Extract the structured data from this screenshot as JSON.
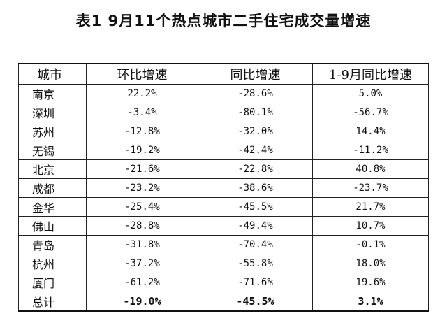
{
  "title": "表1  9月11个热点城市二手住宅成交量增速",
  "table": {
    "headers": [
      "城市",
      "环比增速",
      "同比增速",
      "1-9月同比增速"
    ],
    "rows": [
      {
        "city": "南京",
        "mom": "22.2%",
        "yoy": "-28.6%",
        "ytd": "5.0%"
      },
      {
        "city": "深圳",
        "mom": "-3.4%",
        "yoy": "-80.1%",
        "ytd": "-56.7%"
      },
      {
        "city": "苏州",
        "mom": "-12.8%",
        "yoy": "-32.0%",
        "ytd": "14.4%"
      },
      {
        "city": "无锡",
        "mom": "-19.2%",
        "yoy": "-42.4%",
        "ytd": "-11.2%"
      },
      {
        "city": "北京",
        "mom": "-21.6%",
        "yoy": "-22.8%",
        "ytd": "40.8%"
      },
      {
        "city": "成都",
        "mom": "-23.2%",
        "yoy": "-38.6%",
        "ytd": "-23.7%"
      },
      {
        "city": "金华",
        "mom": "-25.4%",
        "yoy": "-45.5%",
        "ytd": "21.7%"
      },
      {
        "city": "佛山",
        "mom": "-28.8%",
        "yoy": "-49.4%",
        "ytd": "10.7%"
      },
      {
        "city": "青岛",
        "mom": "-31.8%",
        "yoy": "-70.4%",
        "ytd": "-0.1%"
      },
      {
        "city": "杭州",
        "mom": "-37.2%",
        "yoy": "-55.8%",
        "ytd": "18.0%"
      },
      {
        "city": "厦门",
        "mom": "-61.2%",
        "yoy": "-71.6%",
        "ytd": "19.6%"
      }
    ],
    "total": {
      "city": "总计",
      "mom": "-19.0%",
      "yoy": "-45.5%",
      "ytd": "3.1%"
    }
  }
}
